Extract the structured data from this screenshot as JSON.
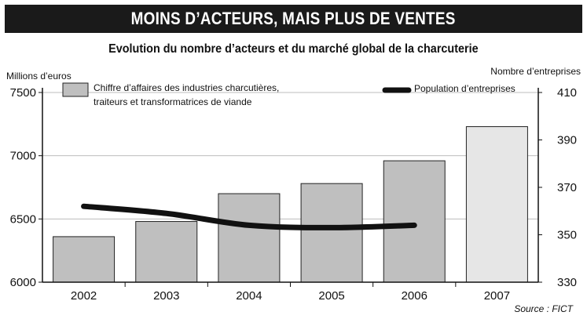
{
  "header": {
    "banner_title": "MOINS D’ACTEURS, MAIS PLUS DE VENTES",
    "subtitle": "Evolution du nombre d’acteurs et du marché global de la charcuterie"
  },
  "source": "Source : FICT",
  "chart_data": {
    "type": "bar",
    "categories": [
      "2002",
      "2003",
      "2004",
      "2005",
      "2006",
      "2007"
    ],
    "left_axis": {
      "unit_label": "Millions d’euros",
      "ylim": [
        6000,
        7500
      ],
      "ticks": [
        6000,
        6500,
        7000,
        7500
      ]
    },
    "right_axis": {
      "unit_label": "Nombre d’entreprises",
      "ylim": [
        330,
        410
      ],
      "ticks": [
        330,
        350,
        370,
        390,
        410
      ]
    },
    "series": [
      {
        "name": "Chiffre d’affaires des industries charcutières, traiteurs et transformatrices de viande",
        "name_lines": [
          "Chiffre d’affaires des industries charcutières,",
          "traiteurs et transformatrices de viande"
        ],
        "kind": "bar",
        "axis": "left",
        "values": [
          6360,
          6480,
          6700,
          6780,
          6960,
          7230
        ],
        "colors": [
          "#bfbfbf",
          "#bfbfbf",
          "#bfbfbf",
          "#bfbfbf",
          "#bfbfbf",
          "#e6e6e6"
        ]
      },
      {
        "name": "Population d’entreprises",
        "kind": "line",
        "axis": "right",
        "values": [
          362,
          359,
          354,
          353,
          354,
          null
        ],
        "color": "#111111"
      }
    ],
    "grid": true,
    "legend": "top"
  }
}
